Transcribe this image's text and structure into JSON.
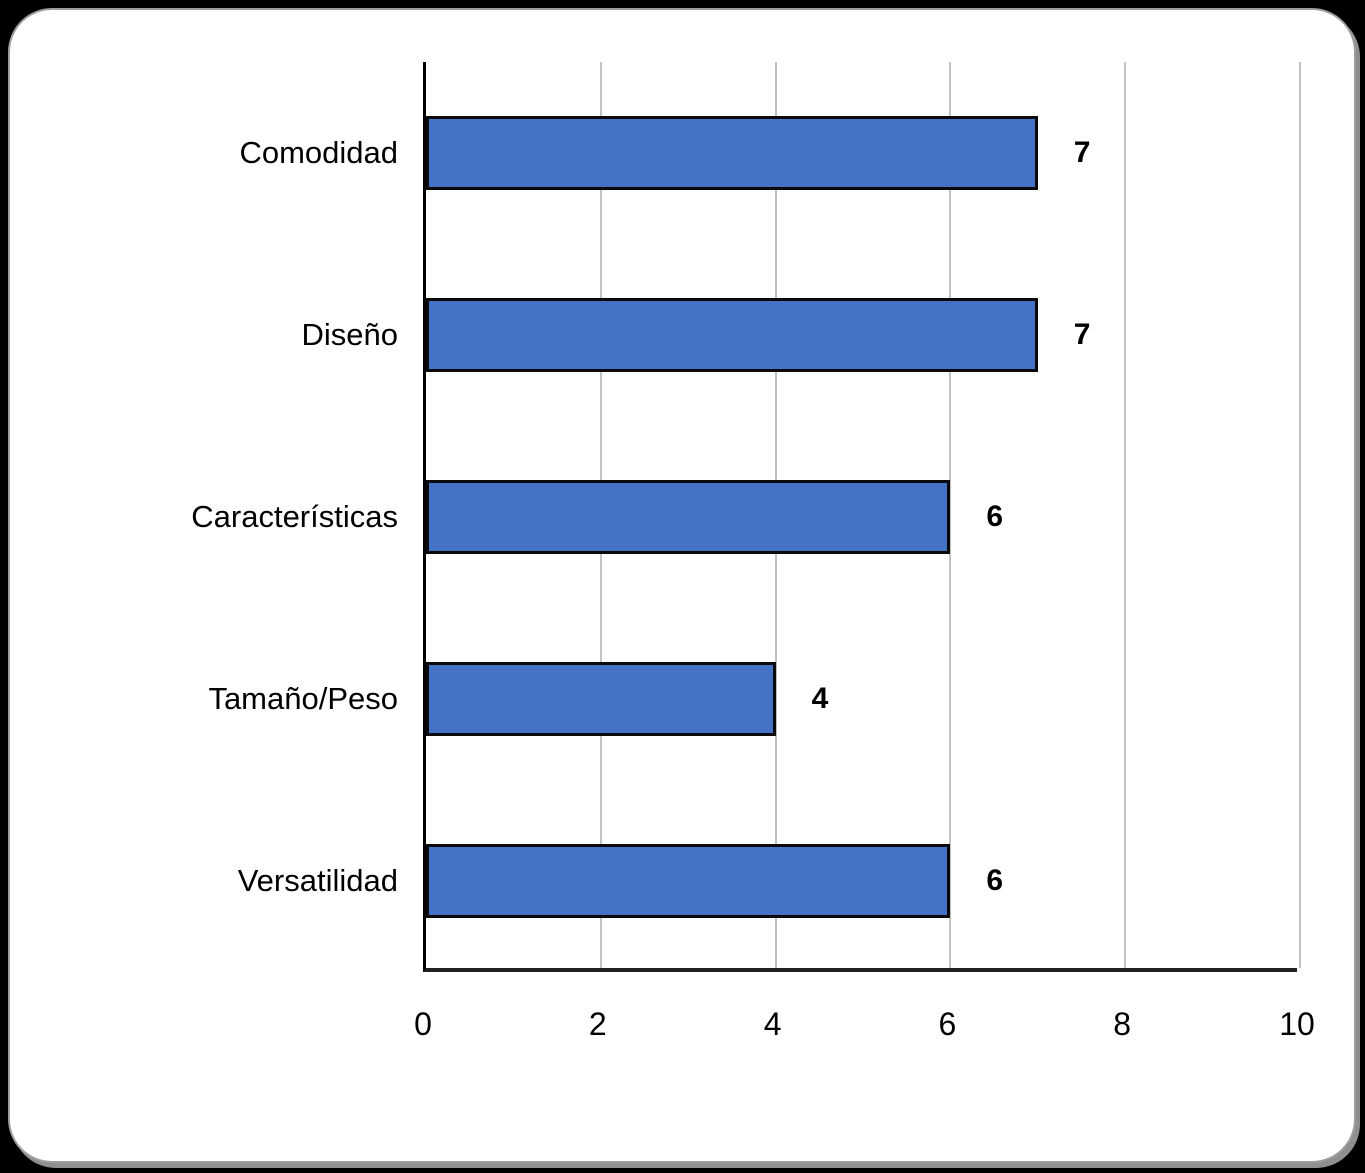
{
  "page": {
    "background_color": "#000000",
    "card_color": "#ffffff"
  },
  "chart_data": {
    "type": "bar",
    "orientation": "horizontal",
    "title": "",
    "xlabel": "",
    "ylabel": "",
    "categories": [
      "Comodidad",
      "Diseño",
      "Características",
      "Tamaño/Peso",
      "Versatilidad"
    ],
    "values": [
      7,
      7,
      6,
      4,
      6
    ],
    "value_labels": [
      "7",
      "7",
      "6",
      "4",
      "6"
    ],
    "xlim": [
      0,
      10
    ],
    "x_ticks": [
      0,
      2,
      4,
      6,
      8,
      10
    ],
    "x_tick_labels": [
      "0",
      "2",
      "4",
      "6",
      "8",
      "10"
    ],
    "grid": "vertical-only",
    "legend": "none",
    "bar_color": "#4472C4",
    "bar_border_color": "#0a0a0a",
    "gridline_color": "#c2c2c2",
    "axis_line_color": "#000000",
    "text_color": "#000000"
  }
}
